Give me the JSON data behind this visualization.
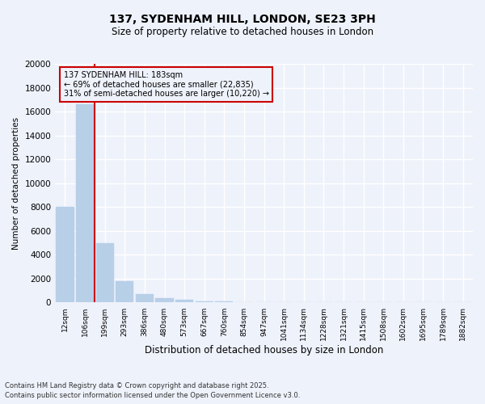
{
  "title1": "137, SYDENHAM HILL, LONDON, SE23 3PH",
  "title2": "Size of property relative to detached houses in London",
  "xlabel": "Distribution of detached houses by size in London",
  "ylabel": "Number of detached properties",
  "categories": [
    "12sqm",
    "106sqm",
    "199sqm",
    "293sqm",
    "386sqm",
    "480sqm",
    "573sqm",
    "667sqm",
    "760sqm",
    "854sqm",
    "947sqm",
    "1041sqm",
    "1134sqm",
    "1228sqm",
    "1321sqm",
    "1415sqm",
    "1508sqm",
    "1602sqm",
    "1695sqm",
    "1789sqm",
    "1882sqm"
  ],
  "values": [
    8050,
    16600,
    5000,
    1820,
    720,
    390,
    210,
    120,
    70,
    40,
    15,
    8,
    5,
    3,
    2,
    1,
    1,
    1,
    1,
    0,
    0
  ],
  "bar_color": "#b8cfe8",
  "bar_edgecolor": "#b8cfe8",
  "vline_color": "#cc0000",
  "vline_x": 1.5,
  "annotation_title": "137 SYDENHAM HILL: 183sqm",
  "annotation_line2": "← 69% of detached houses are smaller (22,835)",
  "annotation_line3": "31% of semi-detached houses are larger (10,220) →",
  "annotation_box_color": "#cc0000",
  "ylim": [
    0,
    20000
  ],
  "yticks": [
    0,
    2000,
    4000,
    6000,
    8000,
    10000,
    12000,
    14000,
    16000,
    18000,
    20000
  ],
  "footnote1": "Contains HM Land Registry data © Crown copyright and database right 2025.",
  "footnote2": "Contains public sector information licensed under the Open Government Licence v3.0.",
  "bg_color": "#eef2fb",
  "grid_color": "#ffffff"
}
